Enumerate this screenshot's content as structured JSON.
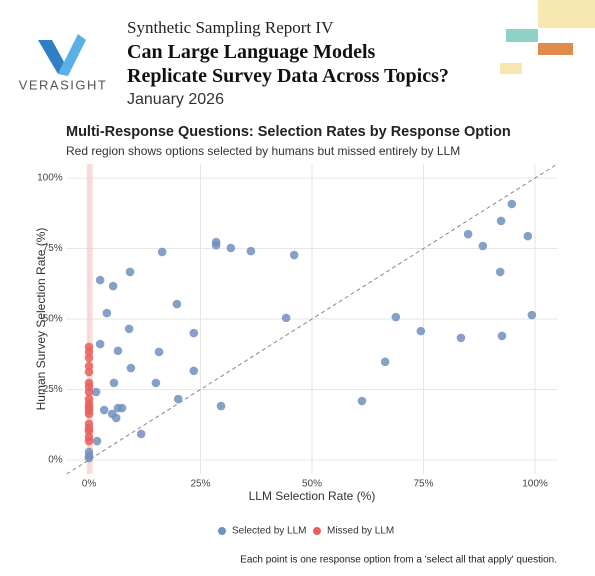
{
  "header": {
    "brand": "VERASIGHT",
    "series": "Synthetic Sampling Report IV",
    "title": "Can Large Language Models Replicate Survey Data Across Topics?",
    "date": "January 2026"
  },
  "chart_data": {
    "type": "scatter",
    "title": "Multi-Response Questions: Selection Rates by Response Option",
    "subtitle": "Red region shows options selected by humans but missed entirely by LLM",
    "x_label": "LLM Selection Rate (%)",
    "y_label": "Human Survey Selection Rate (%)",
    "note": "Each point is one response option from a 'select all that apply' question.",
    "xlim": [
      -5,
      105
    ],
    "ylim": [
      -5,
      105
    ],
    "xticks": [
      {
        "value": 0,
        "label": "0%"
      },
      {
        "value": 25,
        "label": "25%"
      },
      {
        "value": 50,
        "label": "50%"
      },
      {
        "value": 75,
        "label": "75%"
      },
      {
        "value": 100,
        "label": "100%"
      }
    ],
    "yticks": [
      {
        "value": 0,
        "label": "0%"
      },
      {
        "value": 25,
        "label": "25%"
      },
      {
        "value": 50,
        "label": "50%"
      },
      {
        "value": 75,
        "label": "75%"
      },
      {
        "value": 100,
        "label": "100%"
      }
    ],
    "grid": true,
    "legend": "bottom",
    "series": [
      {
        "name": "Selected by LLM",
        "color": "#7090bd",
        "x": [
          2.5,
          5.4,
          9.2,
          16.4,
          28.5,
          28.5,
          31.8,
          36.3,
          46,
          4,
          19.7,
          9,
          23.5,
          44.2,
          2.5,
          6.5,
          15.7,
          9.4,
          23.5,
          5.6,
          15,
          1.6,
          20,
          29.6,
          6.5,
          7.4,
          3.4,
          5.2,
          6.1,
          11.7,
          1.8,
          0,
          0,
          0,
          85,
          92.4,
          94.8,
          88.3,
          98.4,
          92.2,
          68.8,
          74.4,
          83.4,
          92.6,
          99.3,
          66.4,
          61.2
        ],
        "values": [
          63.8,
          61.7,
          66.7,
          73.8,
          77.3,
          76.2,
          75.2,
          74.1,
          72.7,
          52.1,
          55.3,
          46.5,
          45,
          50.4,
          41.1,
          38.7,
          38.3,
          32.6,
          31.6,
          27.3,
          27.3,
          24.1,
          21.6,
          19.1,
          18.4,
          18.4,
          17.7,
          16.3,
          14.9,
          9.2,
          6.7,
          2.8,
          1.4,
          0.7,
          80.1,
          84.8,
          90.8,
          75.9,
          79.4,
          66.7,
          50.7,
          45.7,
          43.3,
          44,
          51.4,
          34.8,
          20.9
        ]
      },
      {
        "name": "Missed by LLM",
        "color": "#e8605a",
        "x": [
          0,
          0,
          0,
          0,
          0,
          0,
          0,
          0,
          0,
          0,
          0,
          0,
          0,
          0,
          0,
          0,
          0,
          0
        ],
        "values": [
          40.1,
          38.3,
          36.2,
          33.3,
          31.2,
          27.3,
          25.9,
          24.1,
          21.6,
          19.9,
          18.8,
          17.7,
          16.3,
          12.8,
          11.3,
          10.3,
          8.2,
          6.7
        ]
      }
    ]
  }
}
